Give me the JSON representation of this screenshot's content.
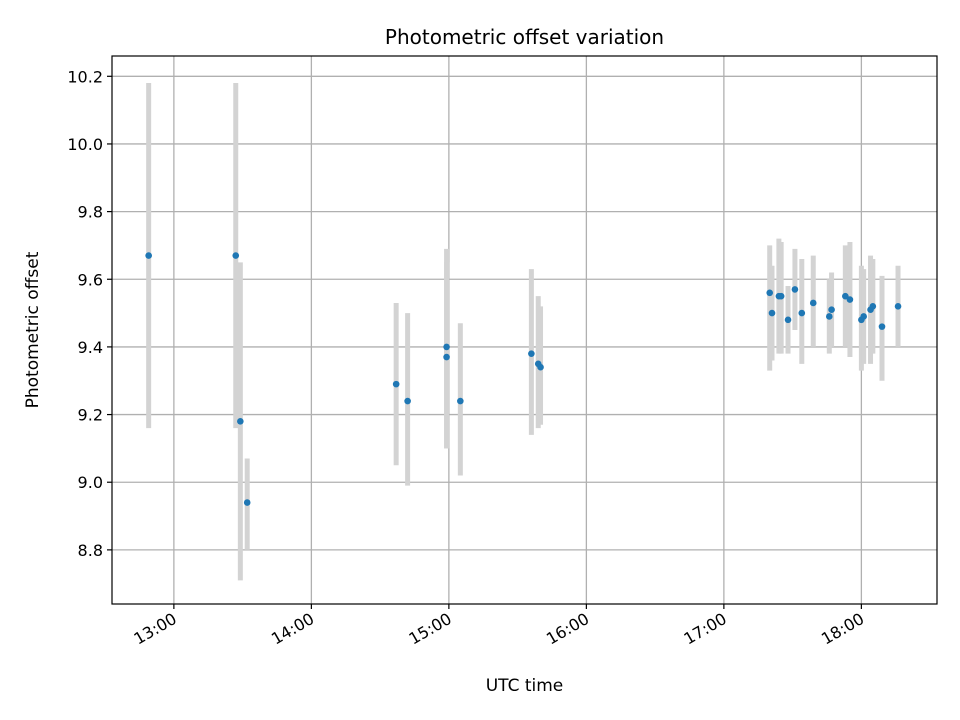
{
  "chart_data": {
    "type": "scatter",
    "title": "Photometric offset variation",
    "xlabel": "UTC time",
    "ylabel": "Photometric offset",
    "xlim": [
      "12:33",
      "18:33"
    ],
    "ylim": [
      8.64,
      10.26
    ],
    "x_ticks": [
      "13:00",
      "14:00",
      "15:00",
      "16:00",
      "17:00",
      "18:00"
    ],
    "y_ticks": [
      8.8,
      9.0,
      9.2,
      9.4,
      9.6,
      9.8,
      10.0,
      10.2
    ],
    "y_tick_labels": [
      "8.8",
      "9.0",
      "9.2",
      "9.4",
      "9.6",
      "9.8",
      "10.0",
      "10.2"
    ],
    "grid": true,
    "colors": {
      "points": "#1f77b4",
      "error_bars": "#d3d3d3",
      "grid": "#b0b0b0"
    },
    "points": [
      {
        "x": "12:49",
        "y": 9.67,
        "ylow": 9.16,
        "yhigh": 10.18
      },
      {
        "x": "13:27",
        "y": 9.67,
        "ylow": 9.16,
        "yhigh": 10.18
      },
      {
        "x": "13:29",
        "y": 9.18,
        "ylow": 8.71,
        "yhigh": 9.65
      },
      {
        "x": "13:32",
        "y": 8.94,
        "ylow": 8.8,
        "yhigh": 9.07
      },
      {
        "x": "14:37",
        "y": 9.29,
        "ylow": 9.05,
        "yhigh": 9.53
      },
      {
        "x": "14:42",
        "y": 9.24,
        "ylow": 8.99,
        "yhigh": 9.5
      },
      {
        "x": "14:59",
        "y": 9.4,
        "ylow": 9.1,
        "yhigh": 9.69
      },
      {
        "x": "14:59",
        "y": 9.37,
        "ylow": 9.1,
        "yhigh": 9.65
      },
      {
        "x": "15:05",
        "y": 9.24,
        "ylow": 9.02,
        "yhigh": 9.47
      },
      {
        "x": "15:36",
        "y": 9.38,
        "ylow": 9.14,
        "yhigh": 9.63
      },
      {
        "x": "15:39",
        "y": 9.35,
        "ylow": 9.16,
        "yhigh": 9.55
      },
      {
        "x": "15:40",
        "y": 9.34,
        "ylow": 9.17,
        "yhigh": 9.52
      },
      {
        "x": "17:20",
        "y": 9.56,
        "ylow": 9.33,
        "yhigh": 9.7
      },
      {
        "x": "17:21",
        "y": 9.5,
        "ylow": 9.36,
        "yhigh": 9.64
      },
      {
        "x": "17:24",
        "y": 9.55,
        "ylow": 9.38,
        "yhigh": 9.72
      },
      {
        "x": "17:25",
        "y": 9.55,
        "ylow": 9.38,
        "yhigh": 9.71
      },
      {
        "x": "17:28",
        "y": 9.48,
        "ylow": 9.38,
        "yhigh": 9.58
      },
      {
        "x": "17:31",
        "y": 9.57,
        "ylow": 9.45,
        "yhigh": 9.69
      },
      {
        "x": "17:34",
        "y": 9.5,
        "ylow": 9.35,
        "yhigh": 9.66
      },
      {
        "x": "17:39",
        "y": 9.53,
        "ylow": 9.4,
        "yhigh": 9.67
      },
      {
        "x": "17:46",
        "y": 9.49,
        "ylow": 9.38,
        "yhigh": 9.6
      },
      {
        "x": "17:47",
        "y": 9.51,
        "ylow": 9.4,
        "yhigh": 9.62
      },
      {
        "x": "17:53",
        "y": 9.55,
        "ylow": 9.4,
        "yhigh": 9.7
      },
      {
        "x": "17:55",
        "y": 9.54,
        "ylow": 9.37,
        "yhigh": 9.71
      },
      {
        "x": "18:00",
        "y": 9.48,
        "ylow": 9.33,
        "yhigh": 9.64
      },
      {
        "x": "18:01",
        "y": 9.49,
        "ylow": 9.35,
        "yhigh": 9.63
      },
      {
        "x": "18:04",
        "y": 9.51,
        "ylow": 9.35,
        "yhigh": 9.67
      },
      {
        "x": "18:05",
        "y": 9.52,
        "ylow": 9.38,
        "yhigh": 9.66
      },
      {
        "x": "18:09",
        "y": 9.46,
        "ylow": 9.3,
        "yhigh": 9.61
      },
      {
        "x": "18:16",
        "y": 9.52,
        "ylow": 9.4,
        "yhigh": 9.64
      }
    ]
  }
}
